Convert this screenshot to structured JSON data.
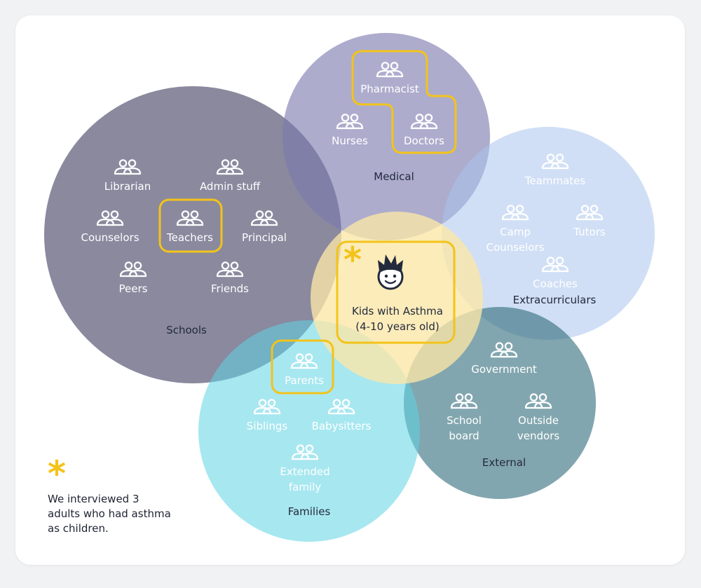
{
  "colors": {
    "schools": "#5d5c78",
    "medical": "#7b79ae",
    "extracurriculars": "#a9c5ec",
    "external": "#2f6b79",
    "families": "#5fd4e3",
    "center": "#fbe7a6",
    "highlight": "#f3c31a",
    "dark_text": "#232a3c"
  },
  "groups": {
    "schools": "Schools",
    "medical": "Medical",
    "extracurriculars": "Extracurriculars",
    "external": "External",
    "families": "Families"
  },
  "center": {
    "line1": "Kids with Asthma",
    "line2": "(4-10 years old)",
    "icon": "smiling-kid-icon"
  },
  "stakeholders": {
    "librarian": "Librarian",
    "admin_stuff": "Admin stuff",
    "counselors": "Counselors",
    "teachers": "Teachers",
    "principal": "Principal",
    "peers": "Peers",
    "friends": "Friends",
    "pharmacist": "Pharmacist",
    "nurses": "Nurses",
    "doctors": "Doctors",
    "teammates": "Teammates",
    "camp_line1": "Camp",
    "camp_line2": "Counselors",
    "tutors": "Tutors",
    "coaches": "Coaches",
    "government": "Government",
    "school_board_line1": "School",
    "school_board_line2": "board",
    "outside_vendors_line1": "Outside",
    "outside_vendors_line2": "vendors",
    "parents": "Parents",
    "siblings": "Siblings",
    "babysitters": "Babysitters",
    "extended_line1": "Extended",
    "extended_line2": "family"
  },
  "people_icon": "people-group-icon",
  "legend": {
    "symbol": "*",
    "text": "We interviewed 3 adults who had asthma as children."
  }
}
